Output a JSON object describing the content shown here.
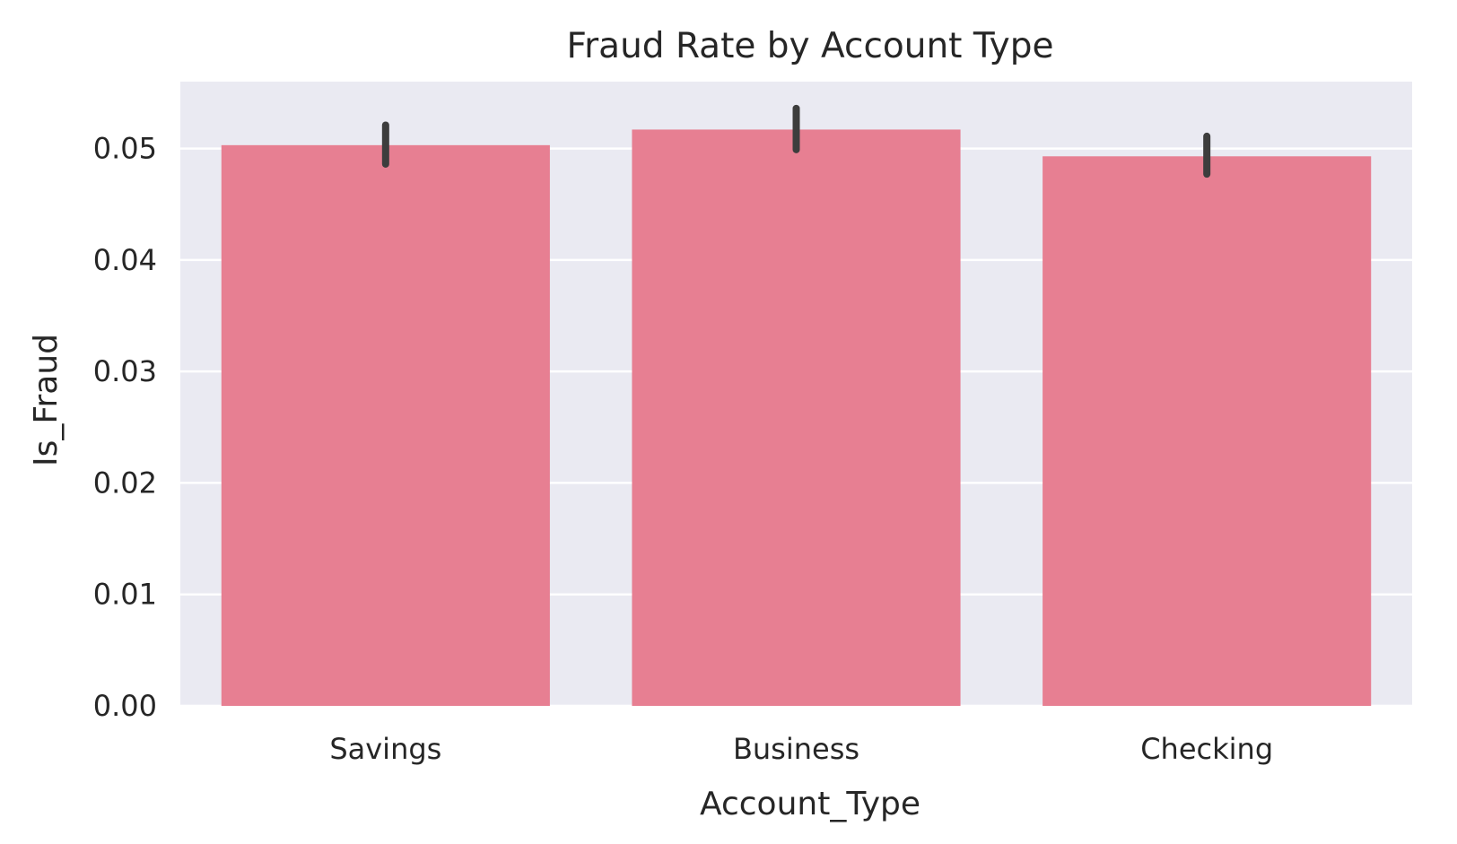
{
  "colors": {
    "plot_background": "#eaeaf2",
    "grid": "#ffffff",
    "bar": "#e77f92",
    "error_bar": "#3d3d3d",
    "text": "#262626"
  },
  "chart_data": {
    "type": "bar",
    "title": "Fraud Rate by Account Type",
    "xlabel": "Account_Type",
    "ylabel": "Is_Fraud",
    "categories": [
      "Savings",
      "Business",
      "Checking"
    ],
    "values": [
      0.0503,
      0.0517,
      0.0493
    ],
    "error_low": [
      0.0486,
      0.0499,
      0.0477
    ],
    "error_high": [
      0.0521,
      0.0536,
      0.0511
    ],
    "ylim": [
      0,
      0.056
    ],
    "yticks": [
      0.0,
      0.01,
      0.02,
      0.03,
      0.04,
      0.05
    ],
    "ytick_labels": [
      "0.00",
      "0.01",
      "0.02",
      "0.03",
      "0.04",
      "0.05"
    ],
    "grid": true,
    "legend": "none"
  }
}
